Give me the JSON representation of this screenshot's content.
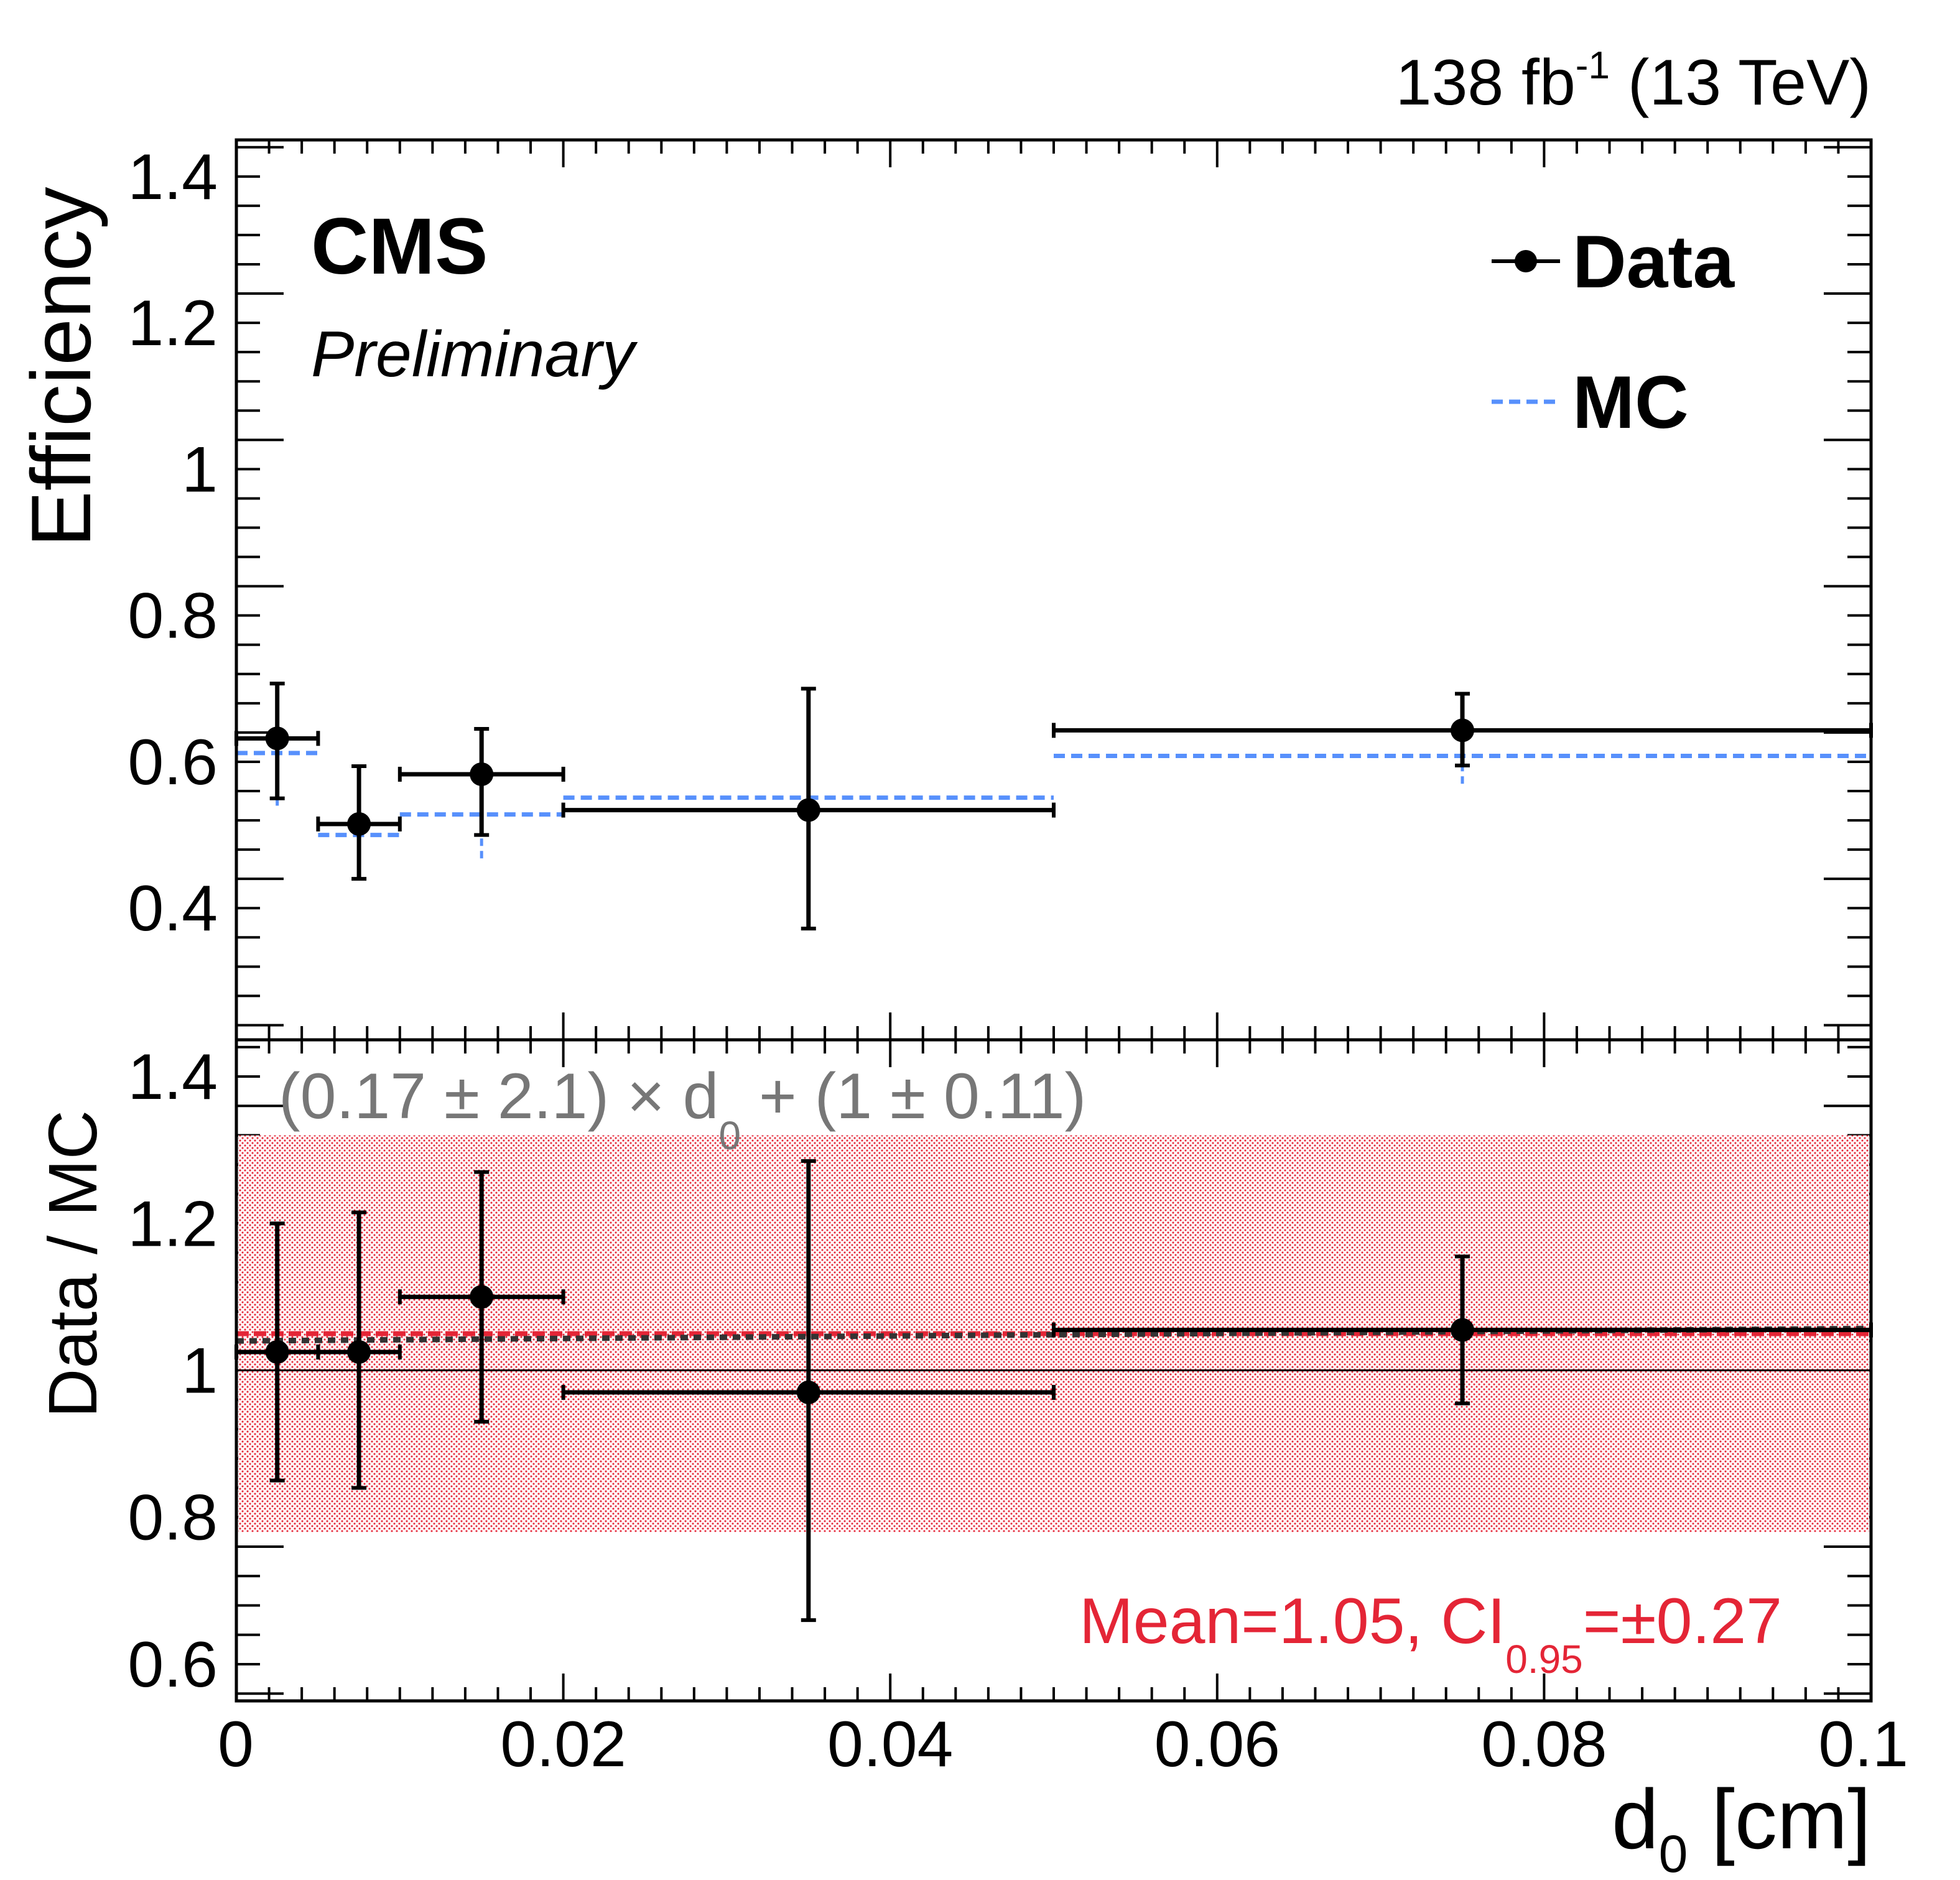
{
  "header": {
    "lumi_value": "138 fb",
    "lumi_exp": "-1",
    "energy": " (13 TeV)",
    "experiment": "CMS",
    "status": "Preliminary"
  },
  "legend": {
    "data_label": "Data",
    "mc_label": "MC"
  },
  "colors": {
    "data": "#000000",
    "mc": "#5790fc",
    "band": "#e42536",
    "fit": "#333333",
    "fit_text": "#777777"
  },
  "chart_data": [
    {
      "type": "scatter",
      "panel": "upper",
      "title": "",
      "xlabel": "",
      "ylabel": "Efficiency",
      "xlim": [
        0,
        0.1
      ],
      "ylim": [
        0.22,
        1.45
      ],
      "yticks": [
        0.4,
        0.6,
        0.8,
        1,
        1.2,
        1.4
      ],
      "ytick_labels": [
        "0.4",
        "0.6",
        "0.8",
        "1",
        "1.2",
        "1.4"
      ],
      "series": [
        {
          "name": "Data",
          "style": "points-with-errors",
          "points": [
            {
              "x": 0.0025,
              "xlow": 0.0,
              "xhigh": 0.005,
              "y": 0.632,
              "ylow": 0.55,
              "yhigh": 0.707
            },
            {
              "x": 0.0075,
              "xlow": 0.005,
              "xhigh": 0.01,
              "y": 0.515,
              "ylow": 0.44,
              "yhigh": 0.594
            },
            {
              "x": 0.015,
              "xlow": 0.01,
              "xhigh": 0.02,
              "y": 0.583,
              "ylow": 0.5,
              "yhigh": 0.645
            },
            {
              "x": 0.035,
              "xlow": 0.02,
              "xhigh": 0.05,
              "y": 0.534,
              "ylow": 0.372,
              "yhigh": 0.7
            },
            {
              "x": 0.075,
              "xlow": 0.05,
              "xhigh": 0.1,
              "y": 0.643,
              "ylow": 0.595,
              "yhigh": 0.693
            }
          ]
        },
        {
          "name": "MC",
          "style": "dashed-step-with-errors",
          "points": [
            {
              "x": 0.0025,
              "xlow": 0.0,
              "xhigh": 0.005,
              "y": 0.612,
              "ylow": 0.54,
              "yhigh": 0.67
            },
            {
              "x": 0.0075,
              "xlow": 0.005,
              "xhigh": 0.01,
              "y": 0.5,
              "ylow": 0.445,
              "yhigh": 0.56
            },
            {
              "x": 0.015,
              "xlow": 0.01,
              "xhigh": 0.02,
              "y": 0.528,
              "ylow": 0.468,
              "yhigh": 0.59
            },
            {
              "x": 0.035,
              "xlow": 0.02,
              "xhigh": 0.05,
              "y": 0.551,
              "ylow": 0.49,
              "yhigh": 0.61
            },
            {
              "x": 0.075,
              "xlow": 0.05,
              "xhigh": 0.1,
              "y": 0.608,
              "ylow": 0.57,
              "yhigh": 0.645
            }
          ]
        }
      ]
    },
    {
      "type": "scatter",
      "panel": "ratio",
      "title": "",
      "xlabel": "d",
      "xlabel_sub": "0",
      "xlabel_unit": " [cm]",
      "ylabel": "Data / MC",
      "xlim": [
        0,
        0.1
      ],
      "ylim": [
        0.55,
        1.45
      ],
      "xticks": [
        0,
        0.02,
        0.04,
        0.06,
        0.08,
        0.1
      ],
      "xtick_labels": [
        "0",
        "0.02",
        "0.04",
        "0.06",
        "0.08",
        "0.1"
      ],
      "yticks": [
        0.6,
        0.8,
        1,
        1.2,
        1.4
      ],
      "ytick_labels": [
        "0.6",
        "0.8",
        "1",
        "1.2",
        "1.4"
      ],
      "reference_line": 1,
      "band": {
        "center": 1.05,
        "low": 0.78,
        "high": 1.32
      },
      "fit": {
        "slope": 0.17,
        "intercept": 1.0,
        "label_pre": "(0.17 ± 2.1) × d",
        "label_sub": "0",
        "label_post": " + (1 ± 0.11)"
      },
      "mean_text": {
        "pre": "Mean=1.05, CI",
        "sub": "0.95",
        "post": "=±0.27"
      },
      "series": [
        {
          "name": "Data/MC",
          "points": [
            {
              "x": 0.0025,
              "xlow": 0.0,
              "xhigh": 0.005,
              "y": 1.025,
              "ylow": 0.85,
              "yhigh": 1.2
            },
            {
              "x": 0.0075,
              "xlow": 0.005,
              "xhigh": 0.01,
              "y": 1.025,
              "ylow": 0.84,
              "yhigh": 1.215
            },
            {
              "x": 0.015,
              "xlow": 0.01,
              "xhigh": 0.02,
              "y": 1.1,
              "ylow": 0.93,
              "yhigh": 1.27
            },
            {
              "x": 0.035,
              "xlow": 0.02,
              "xhigh": 0.05,
              "y": 0.97,
              "ylow": 0.66,
              "yhigh": 1.285
            },
            {
              "x": 0.075,
              "xlow": 0.05,
              "xhigh": 0.1,
              "y": 1.055,
              "ylow": 0.955,
              "yhigh": 1.155
            }
          ]
        }
      ]
    }
  ]
}
